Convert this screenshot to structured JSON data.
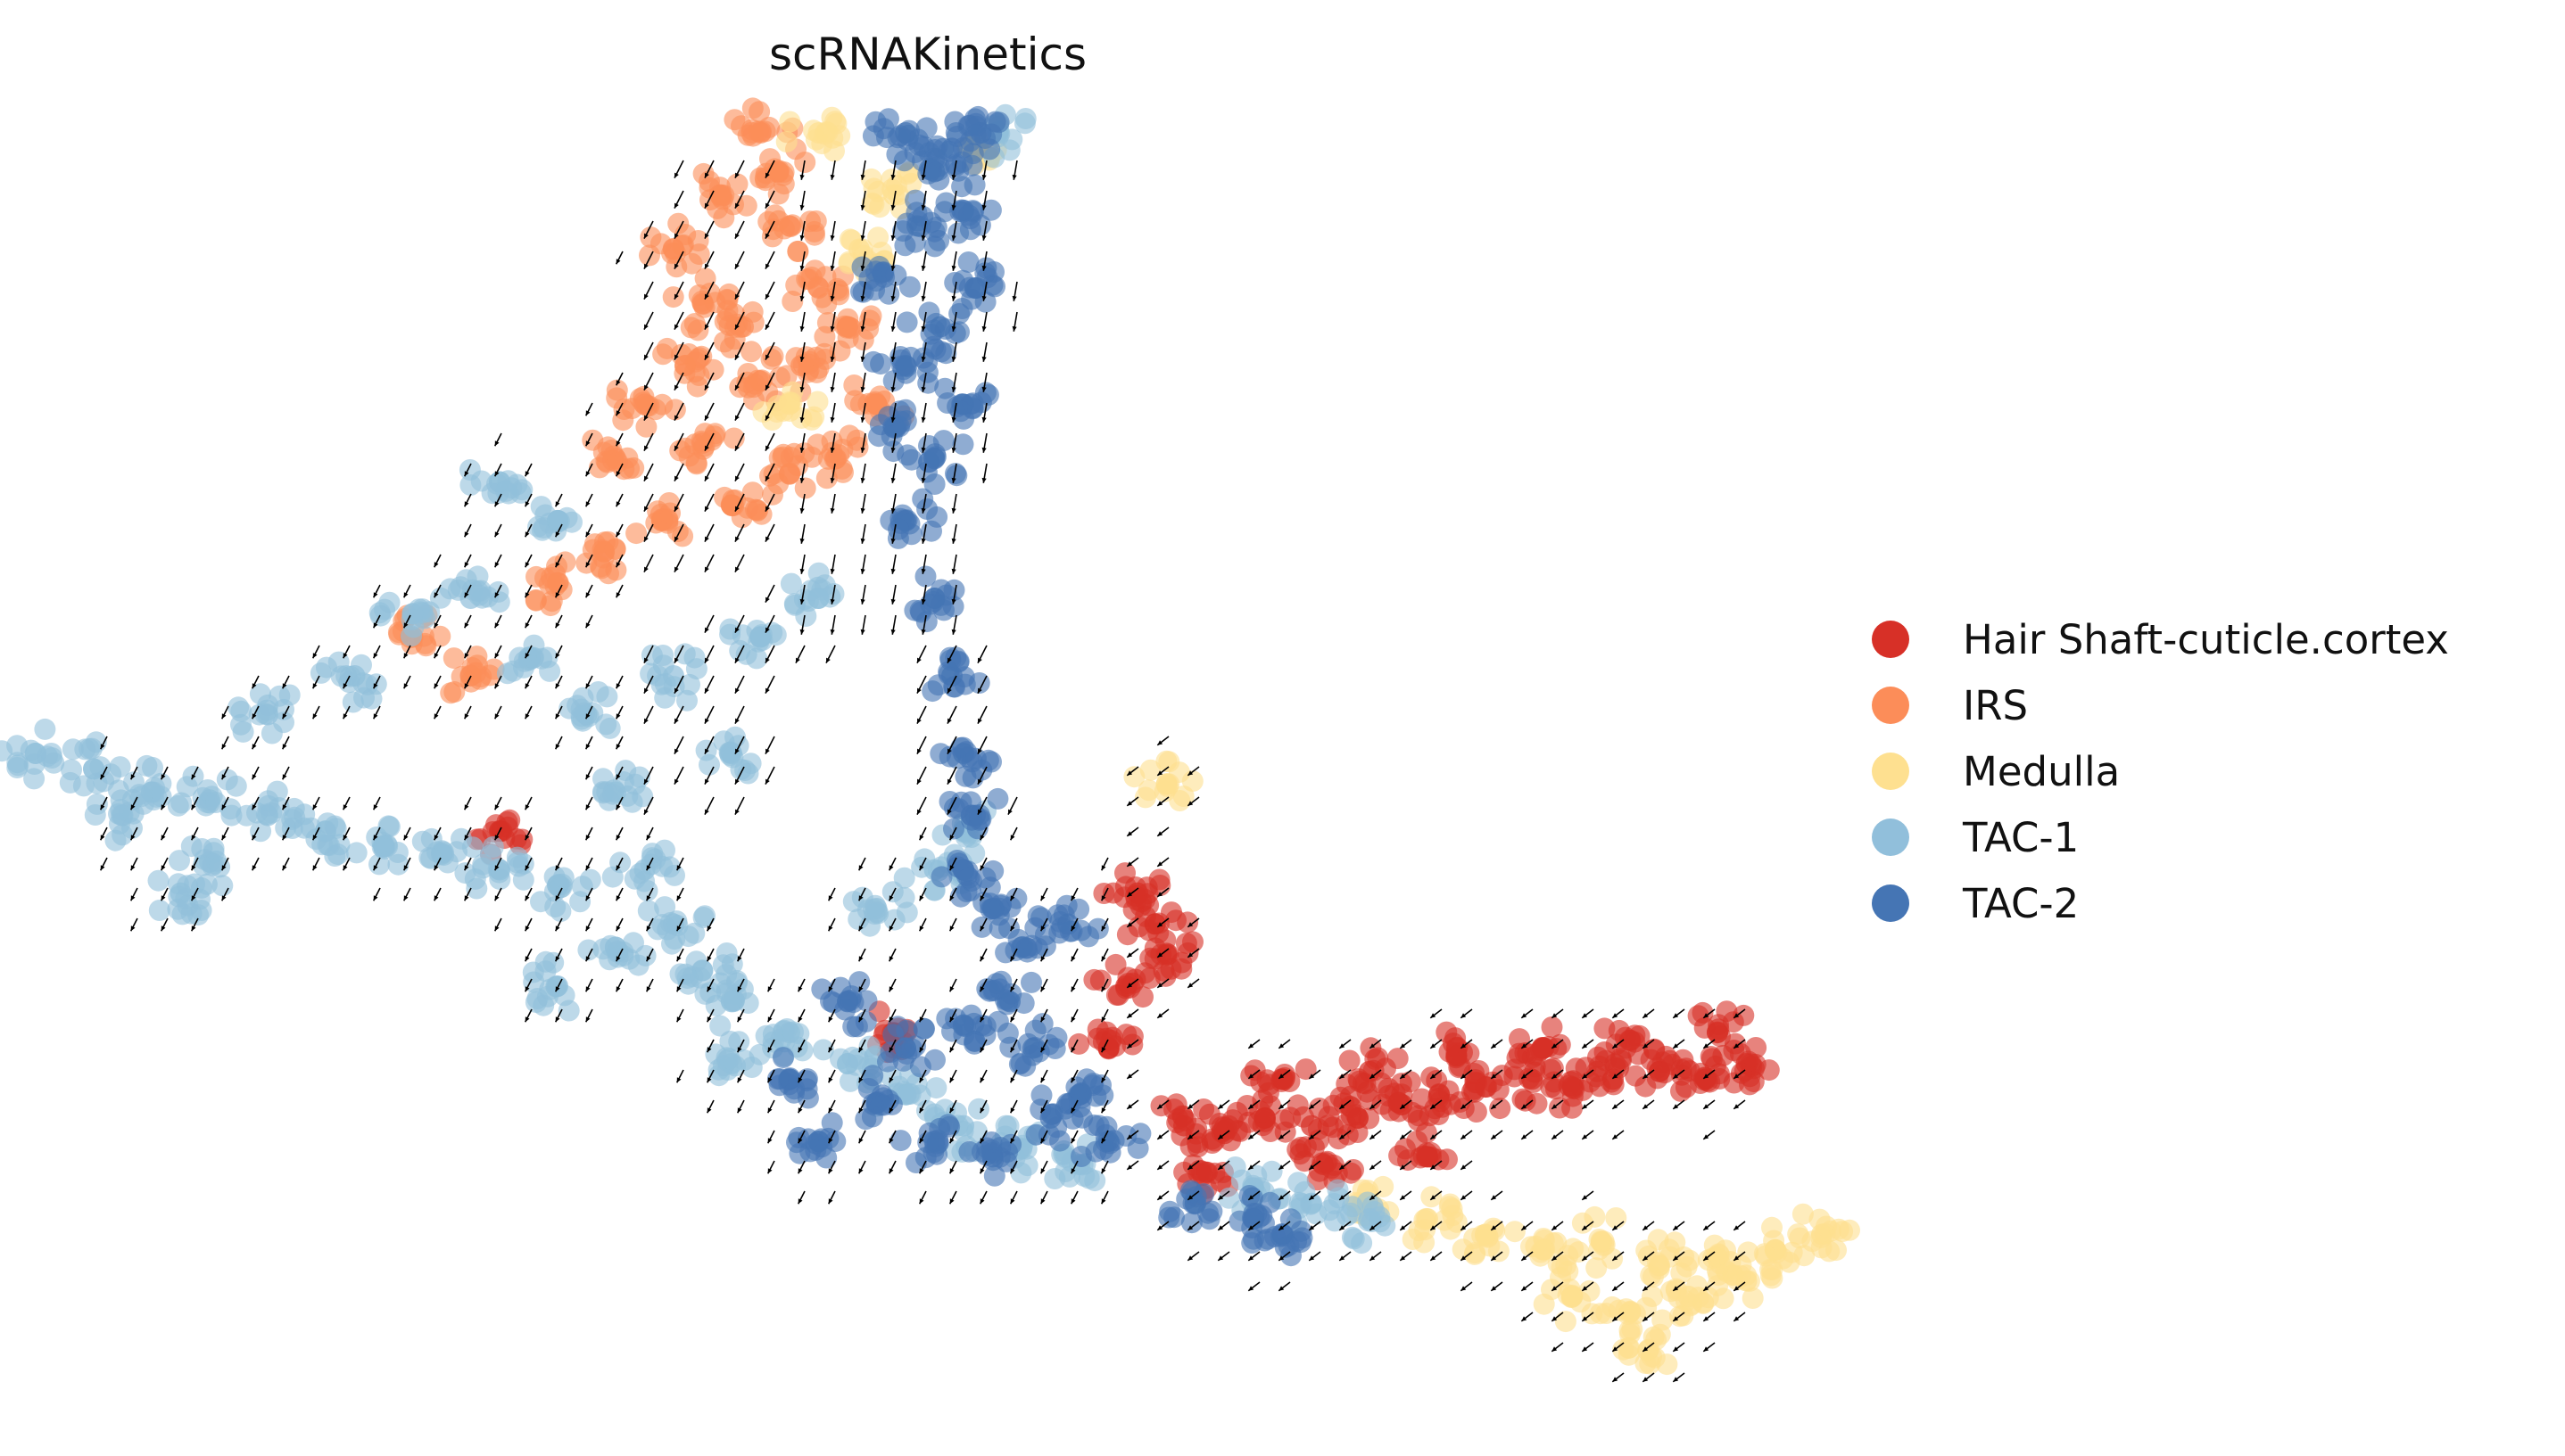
{
  "chart_data": {
    "type": "scatter",
    "title": "scRNAKinetics",
    "xlabel": "",
    "ylabel": "",
    "axes_visible": false,
    "grid": false,
    "legend_position": "right",
    "overlay": "velocity-stream-arrows",
    "series": [
      {
        "name": "Hair Shaft-cuticle.cortex",
        "color": "#d73027",
        "points": [
          [
            0.38,
            0.02
          ],
          [
            0.45,
            0.01
          ],
          [
            0.52,
            0.03
          ],
          [
            0.6,
            0.02
          ],
          [
            0.68,
            0.03
          ],
          [
            0.75,
            0.05
          ],
          [
            0.82,
            0.06
          ],
          [
            0.9,
            0.07
          ],
          [
            0.98,
            0.08
          ],
          [
            1.05,
            0.07
          ],
          [
            1.12,
            0.08
          ],
          [
            1.2,
            0.09
          ],
          [
            1.28,
            0.08
          ],
          [
            1.35,
            0.1
          ],
          [
            0.55,
            0.08
          ],
          [
            0.7,
            0.09
          ],
          [
            0.85,
            0.11
          ],
          [
            1.0,
            0.12
          ],
          [
            1.15,
            0.13
          ],
          [
            1.3,
            0.14
          ],
          [
            0.3,
            0.32
          ],
          [
            0.33,
            0.28
          ],
          [
            0.35,
            0.24
          ],
          [
            0.28,
            0.2
          ],
          [
            0.25,
            0.12
          ],
          [
            0.42,
            -0.04
          ],
          [
            0.62,
            -0.03
          ],
          [
            0.8,
            -0.02
          ],
          [
            -0.8,
            0.4
          ],
          [
            -0.12,
            0.14
          ]
        ]
      },
      {
        "name": "IRS",
        "color": "#fc8d59",
        "points": [
          [
            -0.5,
            1.15
          ],
          [
            -0.42,
            1.22
          ],
          [
            -0.35,
            1.3
          ],
          [
            -0.3,
            1.18
          ],
          [
            -0.25,
            1.1
          ],
          [
            -0.38,
            1.05
          ],
          [
            -0.48,
            1.0
          ],
          [
            -0.55,
            0.95
          ],
          [
            -0.45,
            0.9
          ],
          [
            -0.35,
            0.98
          ],
          [
            -0.28,
            1.0
          ],
          [
            -0.2,
            1.05
          ],
          [
            -0.15,
            0.95
          ],
          [
            -0.22,
            0.88
          ],
          [
            -0.4,
            0.82
          ],
          [
            -0.32,
            1.25
          ],
          [
            -0.45,
            1.08
          ],
          [
            -0.6,
            0.88
          ],
          [
            -0.52,
            0.8
          ],
          [
            -0.3,
            0.86
          ],
          [
            -0.85,
            0.6
          ],
          [
            -0.95,
            0.65
          ],
          [
            -0.7,
            0.72
          ],
          [
            -0.62,
            0.76
          ]
        ]
      },
      {
        "name": "Medulla",
        "color": "#fee090",
        "points": [
          [
            0.9,
            -0.12
          ],
          [
            1.0,
            -0.14
          ],
          [
            1.1,
            -0.13
          ],
          [
            1.2,
            -0.16
          ],
          [
            1.3,
            -0.15
          ],
          [
            1.4,
            -0.14
          ],
          [
            1.48,
            -0.12
          ],
          [
            1.05,
            -0.2
          ],
          [
            1.15,
            -0.22
          ],
          [
            1.25,
            -0.2
          ],
          [
            1.35,
            -0.18
          ],
          [
            1.18,
            -0.27
          ],
          [
            0.8,
            -0.1
          ],
          [
            0.7,
            -0.08
          ],
          [
            -0.25,
            1.3
          ],
          [
            -0.18,
            1.15
          ],
          [
            -0.12,
            1.22
          ],
          [
            0.02,
            1.28
          ],
          [
            -0.3,
            0.95
          ],
          [
            0.35,
            0.46
          ]
        ]
      },
      {
        "name": "TAC-1",
        "color": "#91bfdb",
        "points": [
          [
            -1.6,
            0.5
          ],
          [
            -1.5,
            0.48
          ],
          [
            -1.4,
            0.45
          ],
          [
            -1.3,
            0.44
          ],
          [
            -1.2,
            0.42
          ],
          [
            -1.1,
            0.4
          ],
          [
            -1.0,
            0.38
          ],
          [
            -0.9,
            0.37
          ],
          [
            -0.8,
            0.35
          ],
          [
            -0.7,
            0.33
          ],
          [
            -1.2,
            0.55
          ],
          [
            -1.05,
            0.6
          ],
          [
            -0.95,
            0.68
          ],
          [
            -0.85,
            0.7
          ],
          [
            -0.75,
            0.62
          ],
          [
            -0.65,
            0.55
          ],
          [
            -0.6,
            0.45
          ],
          [
            -0.55,
            0.35
          ],
          [
            -0.5,
            0.28
          ],
          [
            -0.45,
            0.22
          ],
          [
            -0.4,
            0.18
          ],
          [
            -0.3,
            0.14
          ],
          [
            -0.2,
            0.1
          ],
          [
            -0.1,
            0.06
          ],
          [
            0.0,
            0.02
          ],
          [
            0.1,
            -0.01
          ],
          [
            0.2,
            -0.03
          ],
          [
            -0.7,
            0.8
          ],
          [
            -0.8,
            0.85
          ],
          [
            -0.5,
            0.6
          ],
          [
            -0.4,
            0.5
          ],
          [
            -0.35,
            0.65
          ],
          [
            -0.25,
            0.7
          ],
          [
            -0.15,
            0.3
          ],
          [
            -0.05,
            0.35
          ],
          [
            0.0,
            0.4
          ],
          [
            -1.3,
            0.36
          ],
          [
            -1.45,
            0.42
          ],
          [
            -1.35,
            0.32
          ],
          [
            -0.6,
            0.25
          ],
          [
            -0.7,
            0.2
          ],
          [
            -0.4,
            0.1
          ],
          [
            0.5,
            -0.06
          ],
          [
            0.6,
            -0.08
          ],
          [
            0.7,
            -0.1
          ],
          [
            0.06,
            1.3
          ]
        ]
      },
      {
        "name": "TAC-2",
        "color": "#4575b4",
        "points": [
          [
            -0.1,
            1.3
          ],
          [
            -0.05,
            1.25
          ],
          [
            0.0,
            1.2
          ],
          [
            0.02,
            1.1
          ],
          [
            -0.04,
            1.05
          ],
          [
            -0.1,
            1.0
          ],
          [
            -0.12,
            0.92
          ],
          [
            -0.05,
            0.88
          ],
          [
            0.0,
            0.95
          ],
          [
            0.03,
            1.3
          ],
          [
            -0.02,
            1.28
          ],
          [
            -0.08,
            1.18
          ],
          [
            -0.14,
            1.12
          ],
          [
            -0.1,
            0.8
          ],
          [
            -0.05,
            0.7
          ],
          [
            -0.02,
            0.6
          ],
          [
            0.0,
            0.5
          ],
          [
            0.02,
            0.42
          ],
          [
            0.0,
            0.35
          ],
          [
            0.05,
            0.3
          ],
          [
            0.1,
            0.25
          ],
          [
            0.08,
            0.18
          ],
          [
            0.12,
            0.12
          ],
          [
            0.0,
            0.15
          ],
          [
            -0.1,
            0.12
          ],
          [
            -0.2,
            0.18
          ],
          [
            -0.15,
            0.05
          ],
          [
            -0.05,
            0.0
          ],
          [
            0.05,
            -0.02
          ],
          [
            0.15,
            0.03
          ],
          [
            0.2,
            0.06
          ],
          [
            0.25,
            0.0
          ],
          [
            -0.3,
            0.08
          ],
          [
            -0.25,
            0.0
          ],
          [
            0.4,
            -0.08
          ],
          [
            0.5,
            -0.1
          ],
          [
            0.55,
            -0.12
          ],
          [
            0.18,
            0.28
          ]
        ]
      }
    ]
  },
  "legend": {
    "items": [
      {
        "label": "Hair Shaft-cuticle.cortex",
        "color": "#d73027"
      },
      {
        "label": "IRS",
        "color": "#fc8d59"
      },
      {
        "label": "Medulla",
        "color": "#fee090"
      },
      {
        "label": "TAC-1",
        "color": "#91bfdb"
      },
      {
        "label": "TAC-2",
        "color": "#4575b4"
      }
    ]
  }
}
